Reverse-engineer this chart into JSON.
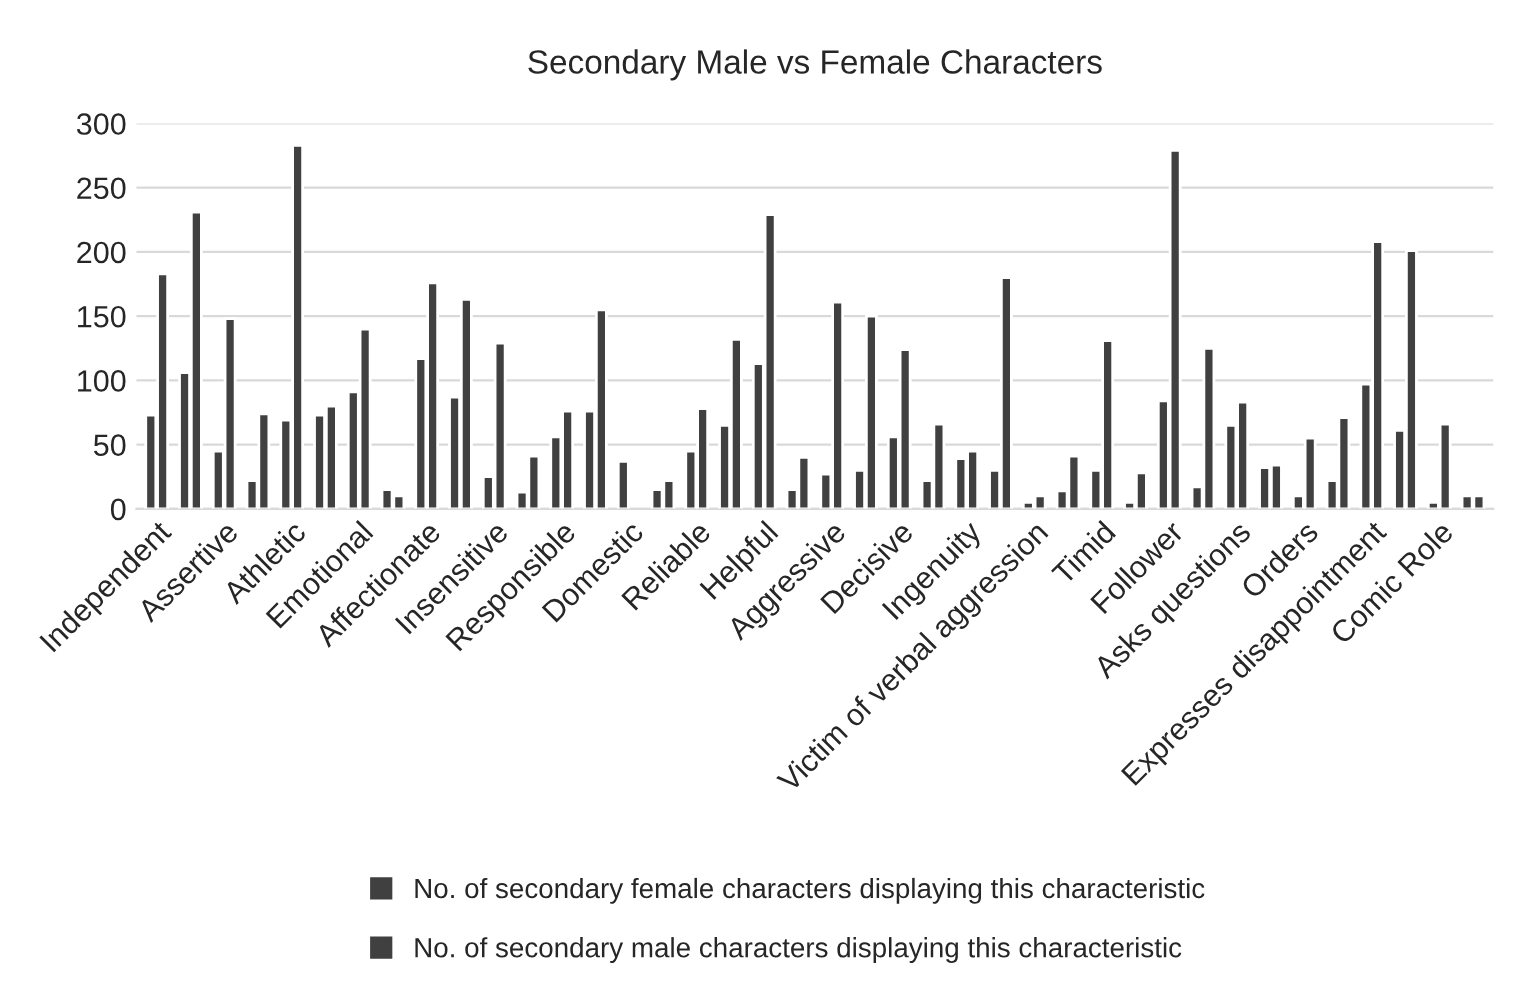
{
  "chart_data": {
    "type": "bar",
    "title": "Secondary Male vs Female Characters",
    "categories": [
      "Independent",
      null,
      "Assertive",
      null,
      "Athletic",
      null,
      "Emotional",
      null,
      "Affectionate",
      null,
      "Insensitive",
      null,
      "Responsible",
      null,
      "Domestic",
      null,
      "Reliable",
      null,
      "Helpful",
      null,
      "Aggressive",
      null,
      "Decisive",
      null,
      "Ingenuity",
      null,
      "Victim of verbal aggression",
      null,
      "Timid",
      null,
      "Follower",
      null,
      "Asks questions",
      null,
      "Orders",
      null,
      "Expresses disappointment",
      null,
      "Comic Role",
      null
    ],
    "series": [
      {
        "name": "No. of secondary female characters displaying this characteristic",
        "color": "#404040",
        "values": [
          73,
          106,
          45,
          22,
          69,
          73,
          91,
          15,
          117,
          87,
          25,
          13,
          56,
          76,
          37,
          15,
          45,
          65,
          113,
          15,
          27,
          30,
          56,
          22,
          39,
          30,
          5,
          14,
          30,
          5,
          84,
          17,
          65,
          32,
          10,
          22,
          97,
          61,
          5,
          10
        ]
      },
      {
        "name": "No. of secondary male characters displaying this characteristic",
        "color": "#404040",
        "values": [
          183,
          231,
          148,
          74,
          283,
          80,
          140,
          10,
          176,
          163,
          129,
          41,
          76,
          155,
          null,
          22,
          78,
          132,
          229,
          40,
          161,
          150,
          124,
          66,
          45,
          180,
          10,
          41,
          131,
          28,
          279,
          125,
          83,
          34,
          55,
          71,
          208,
          201,
          66,
          10
        ]
      }
    ],
    "ylim": [
      0,
      300
    ],
    "yticks": [
      0,
      50,
      100,
      150,
      200,
      250,
      300
    ],
    "grid": "y",
    "legend": "bottom"
  }
}
